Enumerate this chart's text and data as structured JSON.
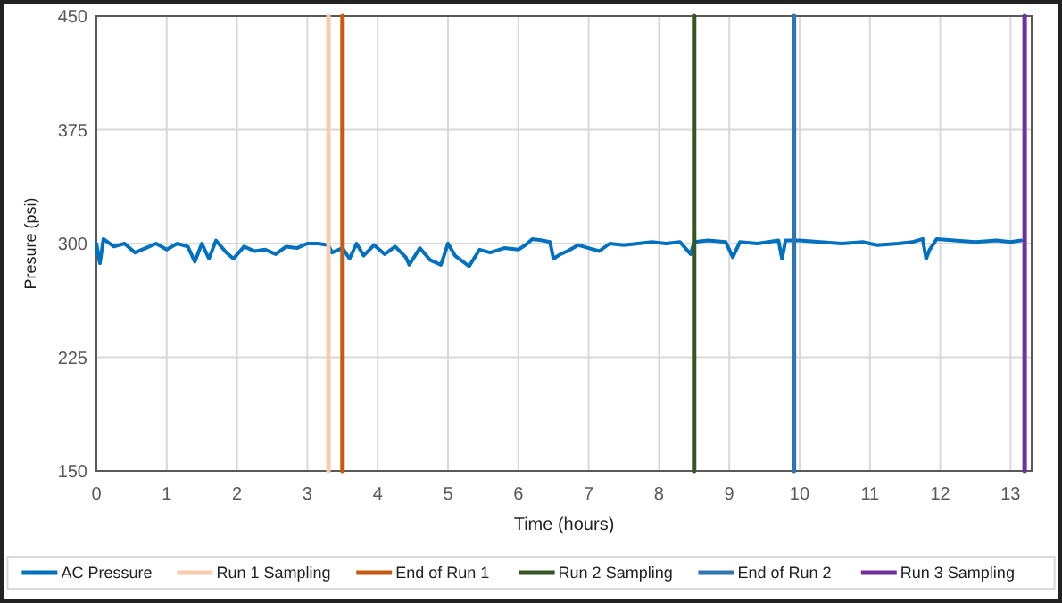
{
  "chart_data": {
    "type": "line",
    "xlabel": "Time (hours)",
    "ylabel": "Presure (psi)",
    "xlim": [
      0,
      13.3
    ],
    "ylim": [
      150,
      450
    ],
    "xticks": [
      0,
      1,
      2,
      3,
      4,
      5,
      6,
      7,
      8,
      9,
      10,
      11,
      12,
      13
    ],
    "yticks": [
      150,
      225,
      300,
      375,
      450
    ],
    "grid": true,
    "legend": "bottom",
    "marker": "none",
    "line_style": "solid",
    "series": [
      {
        "name": "AC Pressure",
        "color": "#0070c0",
        "x": [
          0,
          0.05,
          0.1,
          0.25,
          0.4,
          0.55,
          0.7,
          0.85,
          1.0,
          1.15,
          1.3,
          1.4,
          1.5,
          1.6,
          1.7,
          1.85,
          1.95,
          2.1,
          2.25,
          2.4,
          2.55,
          2.7,
          2.85,
          3.0,
          3.15,
          3.3,
          3.35,
          3.5,
          3.6,
          3.7,
          3.8,
          3.95,
          4.1,
          4.25,
          4.4,
          4.45,
          4.6,
          4.75,
          4.9,
          5.0,
          5.1,
          5.3,
          5.45,
          5.6,
          5.8,
          6.0,
          6.1,
          6.2,
          6.35,
          6.45,
          6.5,
          6.6,
          6.7,
          6.85,
          7.0,
          7.15,
          7.3,
          7.5,
          7.7,
          7.9,
          8.1,
          8.3,
          8.45,
          8.5,
          8.7,
          8.95,
          9.05,
          9.15,
          9.4,
          9.7,
          9.75,
          9.8,
          10.0,
          10.3,
          10.6,
          10.9,
          11.1,
          11.4,
          11.6,
          11.75,
          11.8,
          11.85,
          11.95,
          12.2,
          12.5,
          12.8,
          13.0,
          13.15
        ],
        "values": [
          300,
          287,
          303,
          298,
          300,
          294,
          297,
          300,
          296,
          300,
          298,
          288,
          300,
          290,
          302,
          294,
          290,
          298,
          295,
          296,
          293,
          298,
          297,
          300,
          300,
          299,
          294,
          297,
          290,
          300,
          292,
          299,
          293,
          298,
          291,
          286,
          297,
          289,
          286,
          300,
          292,
          285,
          296,
          294,
          297,
          296,
          299,
          303,
          302,
          301,
          290,
          293,
          295,
          299,
          297,
          295,
          300,
          299,
          300,
          301,
          300,
          301,
          293,
          301,
          302,
          301,
          291,
          301,
          300,
          302,
          290,
          302,
          302,
          301,
          300,
          301,
          299,
          300,
          301,
          303,
          290,
          296,
          303,
          302,
          301,
          302,
          301,
          302
        ]
      },
      {
        "name": "Run 1 Sampling",
        "color": "#f8cbad",
        "x": [
          3.3,
          3.3
        ],
        "values": [
          150,
          450
        ]
      },
      {
        "name": "End of Run 1",
        "color": "#c55a11",
        "x": [
          3.5,
          3.5
        ],
        "values": [
          150,
          450
        ]
      },
      {
        "name": "Run 2 Sampling",
        "color": "#375623",
        "x": [
          8.5,
          8.5
        ],
        "values": [
          150,
          450
        ]
      },
      {
        "name": "End of Run 2",
        "color": "#2e75b6",
        "x": [
          9.92,
          9.92
        ],
        "values": [
          150,
          450
        ]
      },
      {
        "name": "Run 3 Sampling",
        "color": "#7030a0",
        "x": [
          13.2,
          13.2
        ],
        "values": [
          150,
          450
        ]
      }
    ]
  }
}
